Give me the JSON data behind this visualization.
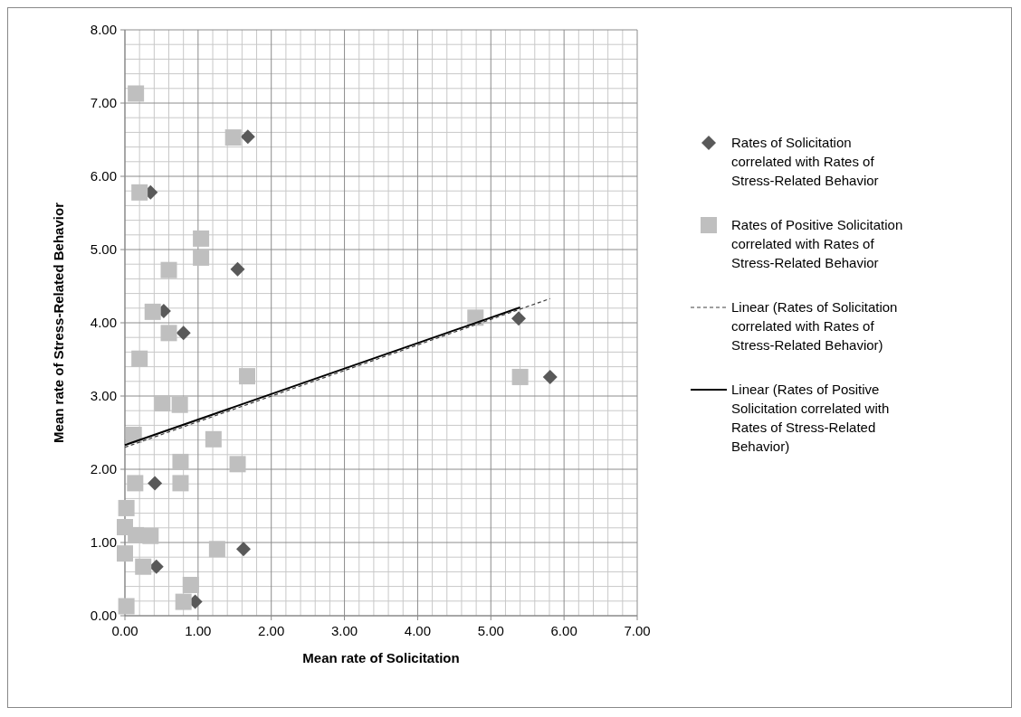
{
  "chart_data": {
    "type": "scatter",
    "xlabel": "Mean rate of Solicitation",
    "ylabel": "Mean rate of Stress-Related Behavior",
    "xlim": [
      0,
      7
    ],
    "xticks": [
      {
        "value": 0,
        "label": "0.00"
      },
      {
        "value": 1,
        "label": "1.00"
      },
      {
        "value": 2,
        "label": "2.00"
      },
      {
        "value": 3,
        "label": "3.00"
      },
      {
        "value": 4,
        "label": "4.00"
      },
      {
        "value": 5,
        "label": "5.00"
      },
      {
        "value": 6,
        "label": "6.00"
      },
      {
        "value": 7,
        "label": "7.00"
      }
    ],
    "ylim": [
      0,
      8
    ],
    "yticks": [
      {
        "value": 0,
        "label": "0.00"
      },
      {
        "value": 1,
        "label": "1.00"
      },
      {
        "value": 2,
        "label": "2.00"
      },
      {
        "value": 3,
        "label": "3.00"
      },
      {
        "value": 4,
        "label": "4.00"
      },
      {
        "value": 5,
        "label": "5.00"
      },
      {
        "value": 6,
        "label": "6.00"
      },
      {
        "value": 7,
        "label": "7.00"
      },
      {
        "value": 8,
        "label": "8.00"
      }
    ],
    "grid": true,
    "legend": "right",
    "series": [
      {
        "name": "Rates of Solicitation correlated with Rates of Stress-Related Behavior",
        "marker": "diamond",
        "color": "#595959",
        "x": [
          1.68,
          0.35,
          1.54,
          0.53,
          0.8,
          0.41,
          1.62,
          0.43,
          0.96,
          5.38,
          5.81
        ],
        "values": [
          6.54,
          5.78,
          4.73,
          4.16,
          3.86,
          1.81,
          0.91,
          0.67,
          0.19,
          4.06,
          3.26
        ]
      },
      {
        "name": "Rates of Positive Solicitation correlated with Rates of Stress-Related Behavior",
        "marker": "square",
        "color": "#bfbfbf",
        "x": [
          0.15,
          1.48,
          0.2,
          1.04,
          1.04,
          0.6,
          0.38,
          0.6,
          0.2,
          1.67,
          0.51,
          0.75,
          0.12,
          1.21,
          0.76,
          1.54,
          0.14,
          0.76,
          0.02,
          0.0,
          0.35,
          0.15,
          1.26,
          0.0,
          0.25,
          0.9,
          0.8,
          0.02,
          4.79,
          5.4
        ],
        "values": [
          7.13,
          6.53,
          5.78,
          5.15,
          4.89,
          4.72,
          4.15,
          3.86,
          3.51,
          3.27,
          2.9,
          2.88,
          2.47,
          2.41,
          2.1,
          2.07,
          1.81,
          1.81,
          1.47,
          1.21,
          1.09,
          1.1,
          0.91,
          0.85,
          0.67,
          0.42,
          0.19,
          0.13,
          4.07,
          3.26
        ]
      },
      {
        "name": "Linear (Rates of Solicitation correlated with Rates of Stress-Related Behavior)",
        "type": "line",
        "line_style": "dashed",
        "color": "#404040",
        "x": [
          0,
          5.81
        ],
        "values": [
          2.3,
          4.33
        ]
      },
      {
        "name": "Linear (Rates of Positive Solicitation correlated with Rates of Stress-Related Behavior)",
        "type": "line",
        "line_style": "solid",
        "color": "#000000",
        "x": [
          0,
          5.4
        ],
        "values": [
          2.33,
          4.21
        ]
      }
    ]
  }
}
